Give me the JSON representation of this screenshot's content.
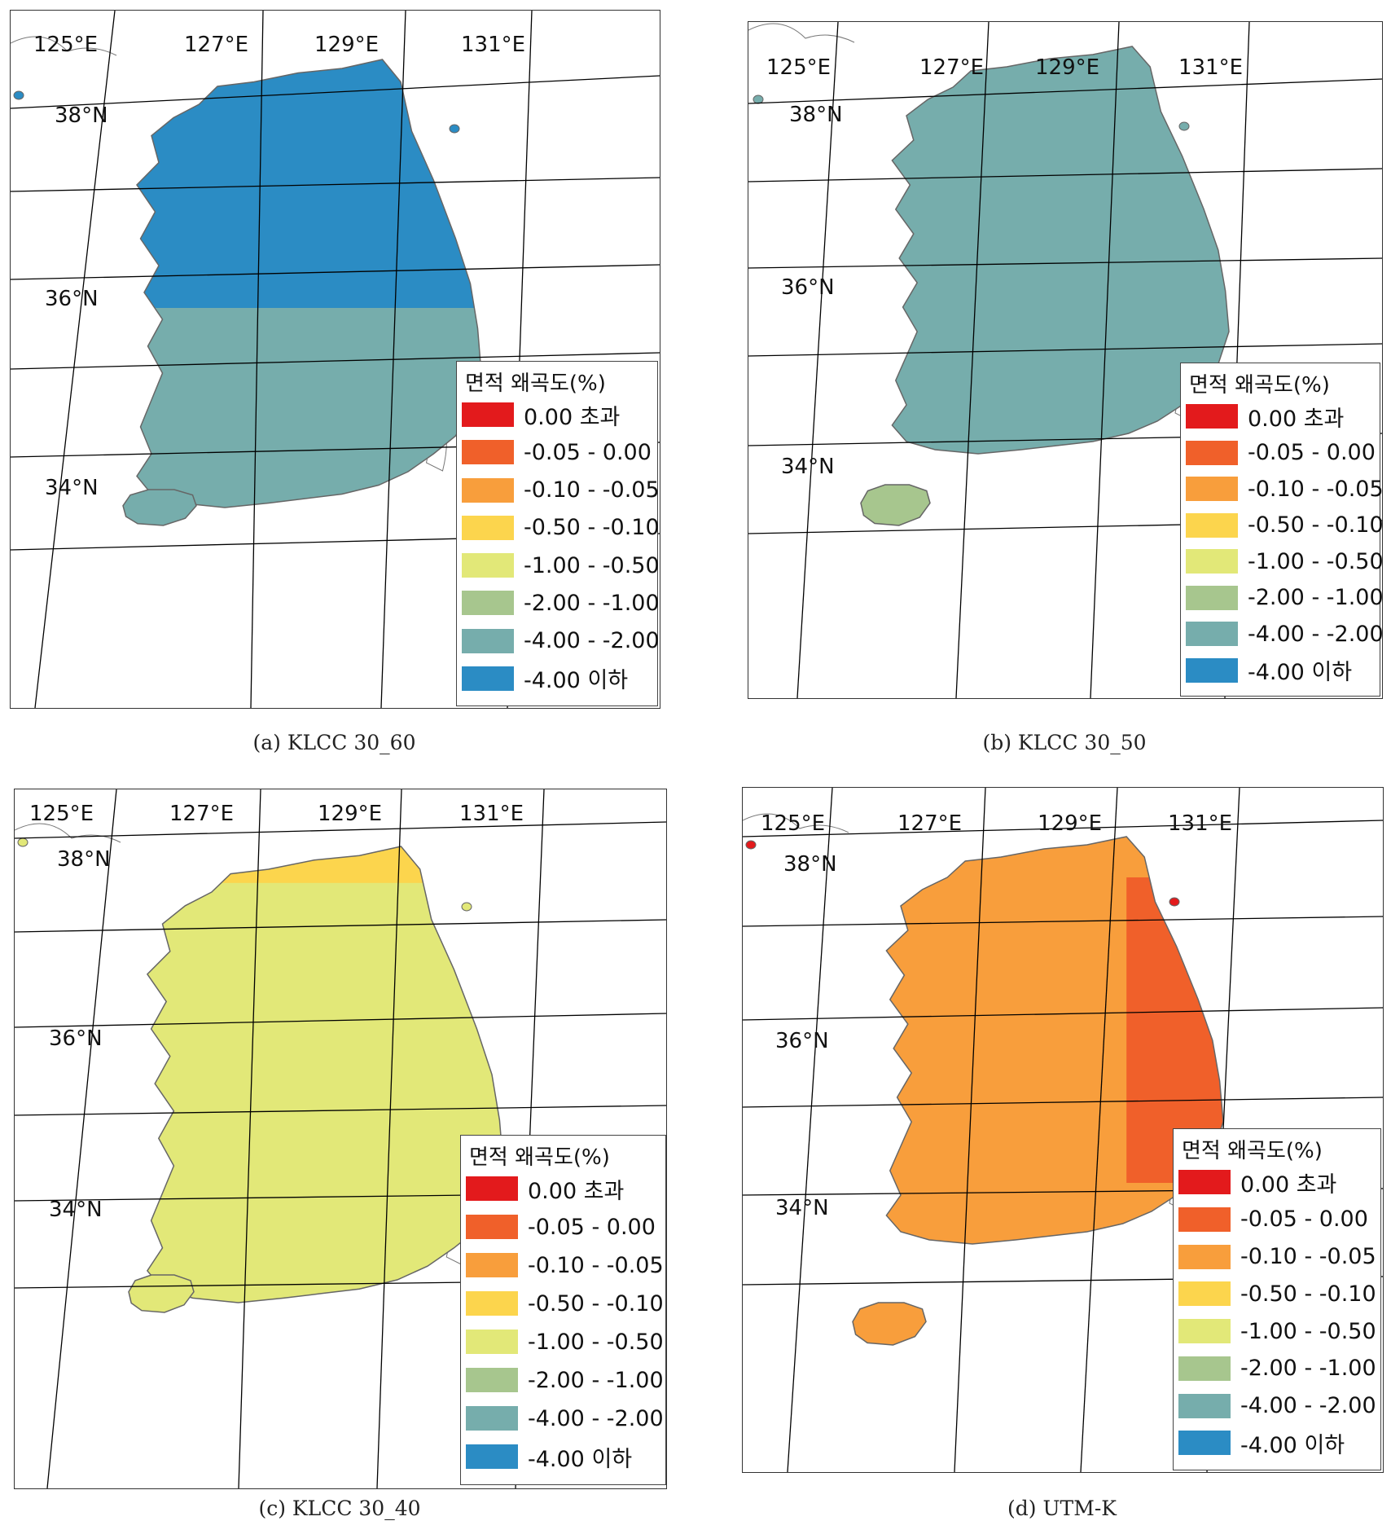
{
  "legend": {
    "title": "면적 왜곡도(%)",
    "classes": [
      {
        "label": "0.00 초과",
        "color": "#e31a1c"
      },
      {
        "label": "-0.05 - 0.00",
        "color": "#f0602a"
      },
      {
        "label": "-0.10 - -0.05",
        "color": "#f89e3c"
      },
      {
        "label": "-0.50 - -0.10",
        "color": "#fcd54d"
      },
      {
        "label": "-1.00 - -0.50",
        "color": "#e2e878"
      },
      {
        "label": "-2.00 - -1.00",
        "color": "#a7c68e"
      },
      {
        "label": "-4.00 - -2.00",
        "color": "#76adac"
      },
      {
        "label": "-4.00 이하",
        "color": "#2b8cc4"
      }
    ]
  },
  "grid_labels": {
    "lon": [
      "125°E",
      "127°E",
      "129°E",
      "131°E"
    ],
    "lat": [
      "38°N",
      "36°N",
      "34°N"
    ]
  },
  "panels": [
    {
      "caption": "(a)  KLCC 30_60",
      "north_color": "#2b8cc4",
      "south_color": "#76adac",
      "jeju_color": "#76adac",
      "islet_color": "#2b8cc4",
      "mode": "ns"
    },
    {
      "caption": "(b)  KLCC 30_50",
      "north_color": "#76adac",
      "south_color": "#76adac",
      "jeju_color": "#a7c68e",
      "islet_color": "#76adac",
      "mode": "ns"
    },
    {
      "caption": "(c)  KLCC 30_40",
      "north_color": "#e2e878",
      "south_color": "#e2e878",
      "jeju_color": "#e2e878",
      "islet_color": "#e2e878",
      "top_color": "#fcd54d",
      "mode": "top"
    },
    {
      "caption": "(d)  UTM-K",
      "north_color": "#f89e3c",
      "south_color": "#f89e3c",
      "jeju_color": "#f89e3c",
      "islet_color": "#e31a1c",
      "east_color": "#f0602a",
      "mode": "east"
    }
  ]
}
